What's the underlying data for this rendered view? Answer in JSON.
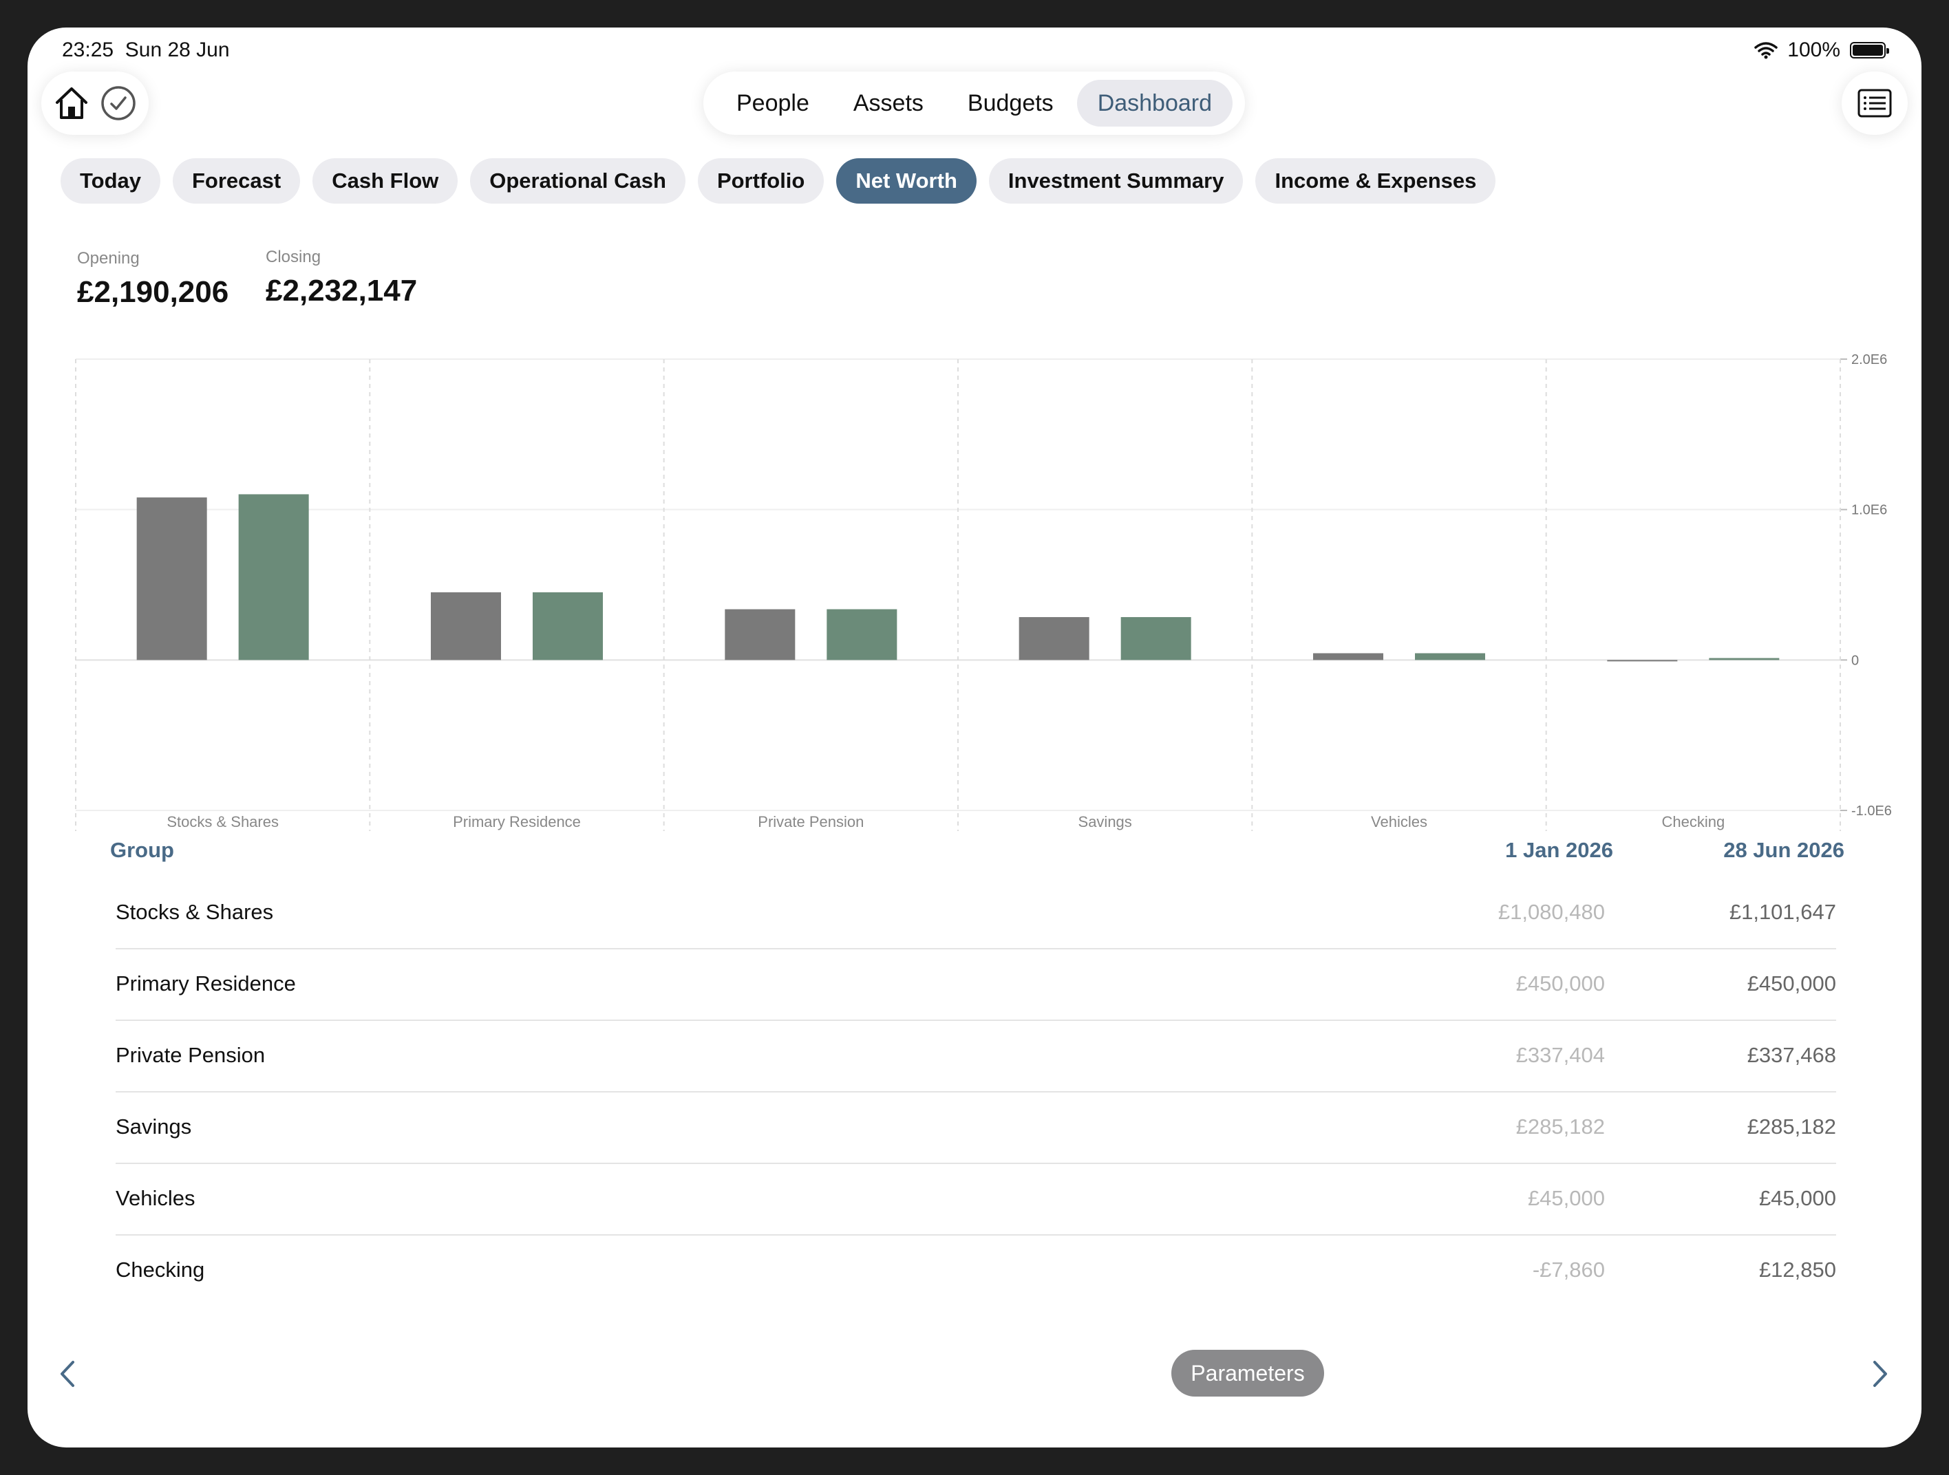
{
  "status": {
    "time": "23:25",
    "date": "Sun 28 Jun",
    "battery": "100%",
    "battery_level": 1.0
  },
  "nav": {
    "segments": [
      "People",
      "Assets",
      "Budgets",
      "Dashboard"
    ],
    "active": "Dashboard"
  },
  "icons": {
    "home": "home-icon",
    "check": "checkmark-circle-icon",
    "list": "list-icon",
    "wifi": "wifi-icon"
  },
  "tabs": [
    "Today",
    "Forecast",
    "Cash Flow",
    "Operational Cash",
    "Portfolio",
    "Net Worth",
    "Investment Summary",
    "Income & Expenses"
  ],
  "active_tab": "Net Worth",
  "summary": {
    "opening_label": "Opening",
    "opening_value": "£2,190,206",
    "closing_label": "Closing",
    "closing_value": "£2,232,147"
  },
  "colors": {
    "opening": "#7a7a7a",
    "closing": "#6b8b79",
    "accent": "#496a87"
  },
  "chart_data": {
    "type": "bar",
    "categories": [
      "Stocks & Shares",
      "Primary Residence",
      "Private Pension",
      "Savings",
      "Vehicles",
      "Checking"
    ],
    "series": [
      {
        "values": [
          1080480,
          450000,
          337404,
          285182,
          45000,
          -7860
        ]
      },
      {
        "values": [
          1101647,
          450000,
          337468,
          285182,
          45000,
          12850
        ]
      }
    ],
    "ylim": [
      -1000000,
      2000000
    ],
    "yticks": [
      2000000,
      1000000,
      0,
      -1000000
    ],
    "ytick_labels": [
      "2.0E6",
      "1.0E6",
      "0",
      "-1.0E6"
    ],
    "grid": true
  },
  "table": {
    "headers": {
      "group": "Group",
      "opening": "1 Jan 2026",
      "closing": "28 Jun 2026"
    },
    "rows": [
      {
        "group": "Stocks & Shares",
        "opening": "£1,080,480",
        "closing": "£1,101,647"
      },
      {
        "group": "Primary Residence",
        "opening": "£450,000",
        "closing": "£450,000"
      },
      {
        "group": "Private Pension",
        "opening": "£337,404",
        "closing": "£337,468"
      },
      {
        "group": "Savings",
        "opening": "£285,182",
        "closing": "£285,182"
      },
      {
        "group": "Vehicles",
        "opening": "£45,000",
        "closing": "£45,000"
      },
      {
        "group": "Checking",
        "opening": "-£7,860",
        "closing": "£12,850"
      }
    ]
  },
  "bottom": {
    "parameters_label": "Parameters"
  }
}
